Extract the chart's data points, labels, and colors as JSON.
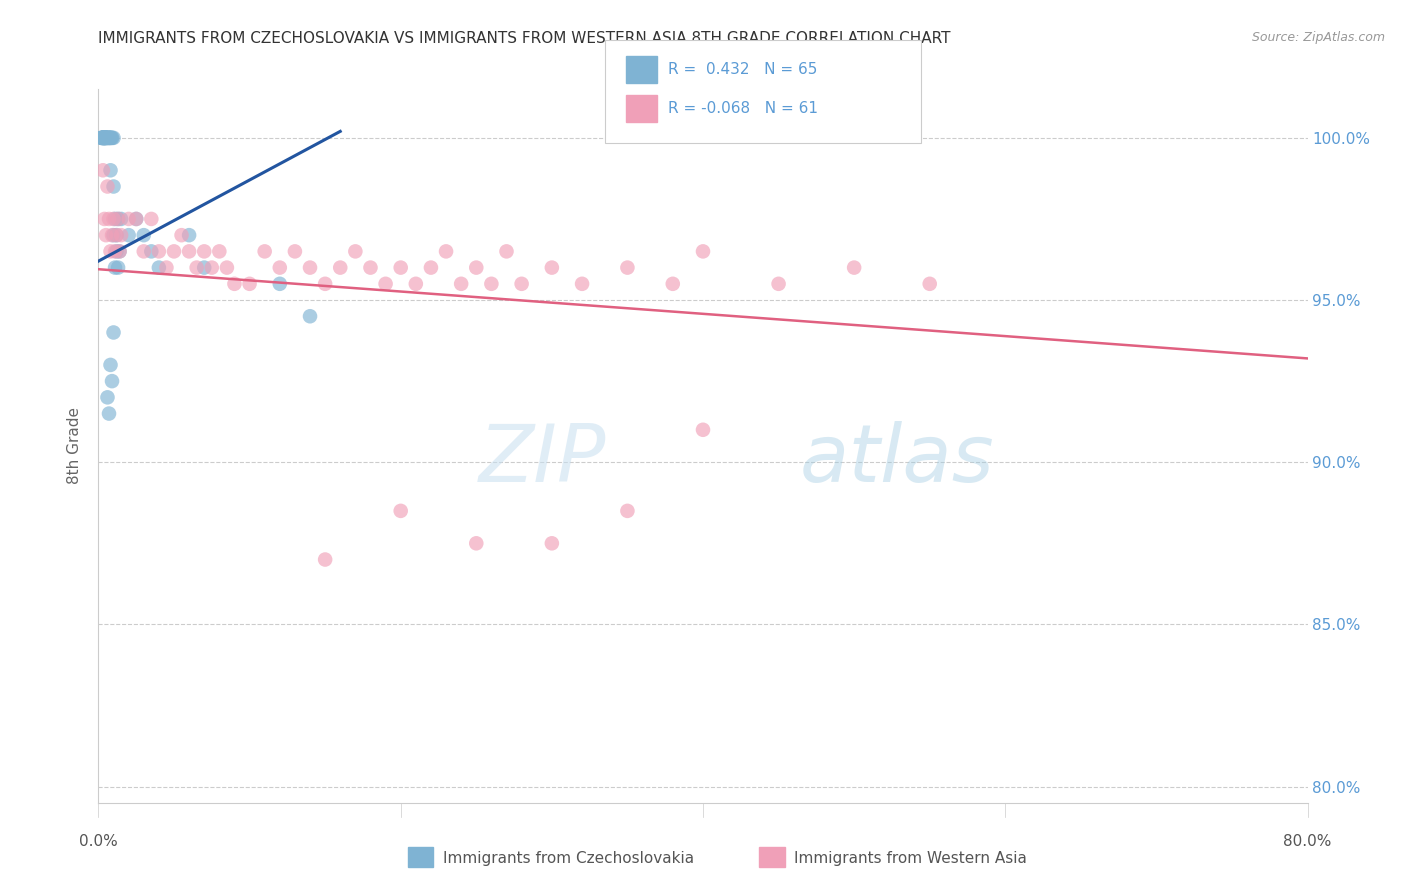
{
  "title": "IMMIGRANTS FROM CZECHOSLOVAKIA VS IMMIGRANTS FROM WESTERN ASIA 8TH GRADE CORRELATION CHART",
  "source": "Source: ZipAtlas.com",
  "ylabel": "8th Grade",
  "ylabel_color": "#666666",
  "watermark_zip": "ZIP",
  "watermark_atlas": "atlas",
  "legend_r1": "R =  0.432",
  "legend_n1": "N = 65",
  "legend_r2": "R = -0.068",
  "legend_n2": "N = 61",
  "blue_color": "#7fb3d3",
  "pink_color": "#f0a0b8",
  "blue_line_color": "#2255a0",
  "pink_line_color": "#e06080",
  "title_color": "#333333",
  "source_color": "#999999",
  "grid_color": "#cccccc",
  "right_axis_color": "#5b9bd5",
  "blue_scatter_x": [
    0.002,
    0.003,
    0.004,
    0.002,
    0.003,
    0.004,
    0.003,
    0.002,
    0.003,
    0.004,
    0.005,
    0.003,
    0.004,
    0.003,
    0.005,
    0.004,
    0.003,
    0.004,
    0.005,
    0.003,
    0.004,
    0.005,
    0.004,
    0.003,
    0.005,
    0.006,
    0.007,
    0.005,
    0.006,
    0.005,
    0.007,
    0.008,
    0.006,
    0.007,
    0.008,
    0.007,
    0.009,
    0.008,
    0.01,
    0.009,
    0.008,
    0.01,
    0.011,
    0.01,
    0.012,
    0.011,
    0.013,
    0.012,
    0.014,
    0.013,
    0.015,
    0.02,
    0.025,
    0.03,
    0.035,
    0.04,
    0.06,
    0.07,
    0.12,
    0.14,
    0.01,
    0.008,
    0.009,
    0.006,
    0.007
  ],
  "blue_scatter_y": [
    1.0,
    1.0,
    1.0,
    1.0,
    1.0,
    1.0,
    1.0,
    1.0,
    1.0,
    1.0,
    1.0,
    1.0,
    1.0,
    1.0,
    1.0,
    1.0,
    1.0,
    1.0,
    1.0,
    1.0,
    1.0,
    1.0,
    1.0,
    1.0,
    1.0,
    1.0,
    1.0,
    1.0,
    1.0,
    1.0,
    1.0,
    1.0,
    1.0,
    1.0,
    1.0,
    1.0,
    1.0,
    1.0,
    1.0,
    1.0,
    0.99,
    0.985,
    0.975,
    0.97,
    0.965,
    0.96,
    0.975,
    0.97,
    0.965,
    0.96,
    0.975,
    0.97,
    0.975,
    0.97,
    0.965,
    0.96,
    0.97,
    0.96,
    0.955,
    0.945,
    0.94,
    0.93,
    0.925,
    0.92,
    0.915
  ],
  "pink_scatter_x": [
    0.003,
    0.004,
    0.005,
    0.006,
    0.007,
    0.008,
    0.009,
    0.01,
    0.011,
    0.012,
    0.013,
    0.014,
    0.015,
    0.02,
    0.025,
    0.03,
    0.035,
    0.04,
    0.045,
    0.05,
    0.055,
    0.06,
    0.065,
    0.07,
    0.075,
    0.08,
    0.085,
    0.09,
    0.1,
    0.11,
    0.12,
    0.13,
    0.14,
    0.15,
    0.16,
    0.17,
    0.18,
    0.19,
    0.2,
    0.21,
    0.22,
    0.23,
    0.24,
    0.25,
    0.26,
    0.27,
    0.28,
    0.3,
    0.32,
    0.35,
    0.38,
    0.4,
    0.45,
    0.5,
    0.55,
    0.4,
    0.35,
    0.3,
    0.25,
    0.2,
    0.15
  ],
  "pink_scatter_y": [
    0.99,
    0.975,
    0.97,
    0.985,
    0.975,
    0.965,
    0.97,
    0.975,
    0.965,
    0.97,
    0.975,
    0.965,
    0.97,
    0.975,
    0.975,
    0.965,
    0.975,
    0.965,
    0.96,
    0.965,
    0.97,
    0.965,
    0.96,
    0.965,
    0.96,
    0.965,
    0.96,
    0.955,
    0.955,
    0.965,
    0.96,
    0.965,
    0.96,
    0.955,
    0.96,
    0.965,
    0.96,
    0.955,
    0.96,
    0.955,
    0.96,
    0.965,
    0.955,
    0.96,
    0.955,
    0.965,
    0.955,
    0.96,
    0.955,
    0.96,
    0.955,
    0.965,
    0.955,
    0.96,
    0.955,
    0.91,
    0.885,
    0.875,
    0.875,
    0.885,
    0.87
  ],
  "blue_trend_x": [
    0.0,
    0.16
  ],
  "blue_trend_y": [
    0.962,
    1.002
  ],
  "pink_trend_x": [
    0.0,
    0.8
  ],
  "pink_trend_y": [
    0.9595,
    0.932
  ],
  "xlim": [
    0.0,
    0.8
  ],
  "ylim": [
    0.795,
    1.015
  ],
  "right_yticks": [
    1.0,
    0.95,
    0.9,
    0.85,
    0.8
  ],
  "right_ytick_labels": [
    "100.0%",
    "95.0%",
    "90.0%",
    "85.0%",
    "80.0%"
  ],
  "bottom_label1": "Immigrants from Czechoslovakia",
  "bottom_label2": "Immigrants from Western Asia"
}
